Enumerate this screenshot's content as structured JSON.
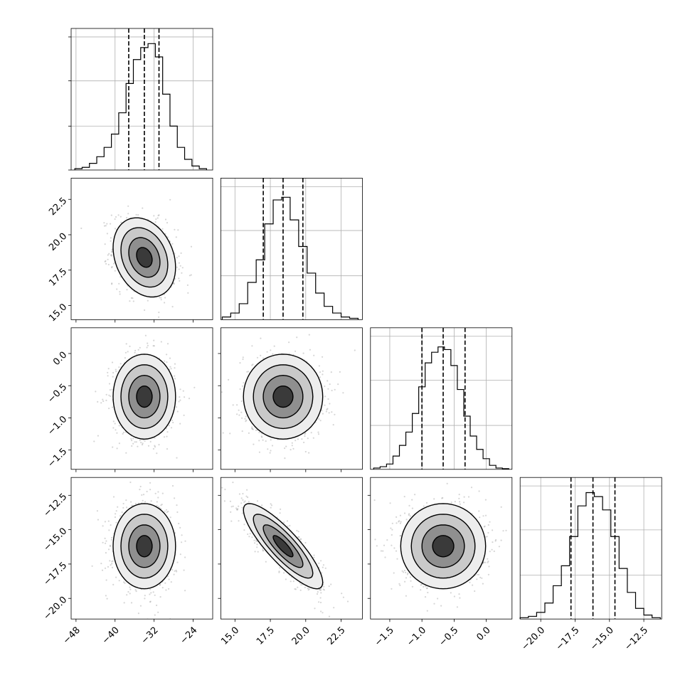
{
  "chart_data": {
    "type": "corner",
    "grid": true,
    "parameters": [
      {
        "range": [
          -49,
          -20
        ],
        "ticks": [
          -48,
          -40,
          -32,
          -24
        ],
        "tick_labels": [
          "−48",
          "−40",
          "−32",
          "−24"
        ],
        "quantiles": [
          -37.2,
          -34.0,
          -31.0
        ],
        "hist_x": [
          -47.5,
          -46.0,
          -44.5,
          -43.0,
          -41.5,
          -40.0,
          -38.5,
          -37.0,
          -35.5,
          -34.0,
          -32.5,
          -31.0,
          -29.5,
          -28.0,
          -26.5,
          -25.0,
          -23.5,
          -22.0
        ],
        "hist_counts": [
          0.01,
          0.02,
          0.05,
          0.1,
          0.17,
          0.27,
          0.43,
          0.65,
          0.83,
          0.92,
          0.95,
          0.85,
          0.57,
          0.33,
          0.17,
          0.08,
          0.03,
          0.01
        ],
        "mean": -34.0,
        "sd": 3.2
      },
      {
        "range": [
          14,
          24
        ],
        "ticks": [
          15.0,
          17.5,
          20.0,
          22.5
        ],
        "tick_labels": [
          "15.0",
          "17.5",
          "20.0",
          "22.5"
        ],
        "quantiles": [
          17.0,
          18.4,
          19.8
        ],
        "hist_x": [
          14.4,
          15.0,
          15.6,
          16.2,
          16.8,
          17.4,
          18.0,
          18.6,
          19.2,
          19.8,
          20.4,
          21.0,
          21.6,
          22.2,
          22.8,
          23.4
        ],
        "hist_counts": [
          0.02,
          0.05,
          0.12,
          0.28,
          0.45,
          0.72,
          0.9,
          0.92,
          0.75,
          0.55,
          0.35,
          0.2,
          0.1,
          0.05,
          0.02,
          0.01
        ],
        "mean": 18.4,
        "sd": 1.4
      },
      {
        "range": [
          -1.8,
          0.4
        ],
        "ticks": [
          -1.5,
          -1.0,
          -0.5,
          0.0
        ],
        "tick_labels": [
          "−1.5",
          "−1.0",
          "−0.5",
          "0.0"
        ],
        "quantiles": [
          -1.0,
          -0.67,
          -0.33
        ],
        "hist_x": [
          -1.7,
          -1.6,
          -1.5,
          -1.4,
          -1.3,
          -1.2,
          -1.1,
          -1.0,
          -0.9,
          -0.8,
          -0.7,
          -0.6,
          -0.5,
          -0.4,
          -0.3,
          -0.2,
          -0.1,
          0.0,
          0.1,
          0.2,
          0.3
        ],
        "hist_counts": [
          0.01,
          0.02,
          0.04,
          0.1,
          0.18,
          0.28,
          0.42,
          0.62,
          0.8,
          0.88,
          0.92,
          0.9,
          0.78,
          0.6,
          0.4,
          0.25,
          0.15,
          0.08,
          0.03,
          0.01,
          0.005
        ],
        "mean": -0.67,
        "sd": 0.33
      },
      {
        "range": [
          -21.5,
          -11.2
        ],
        "ticks": [
          -20.0,
          -17.5,
          -15.0,
          -12.5
        ],
        "tick_labels": [
          "−20.0",
          "−17.5",
          "−15.0",
          "−12.5"
        ],
        "quantiles": [
          -17.8,
          -16.2,
          -14.6
        ],
        "hist_x": [
          -21.2,
          -20.6,
          -20.0,
          -19.4,
          -18.8,
          -18.2,
          -17.6,
          -17.0,
          -16.4,
          -15.8,
          -15.2,
          -14.6,
          -14.0,
          -13.4,
          -12.8,
          -12.2,
          -11.6
        ],
        "hist_counts": [
          0.01,
          0.02,
          0.05,
          0.12,
          0.25,
          0.4,
          0.62,
          0.85,
          0.95,
          0.92,
          0.82,
          0.62,
          0.38,
          0.2,
          0.08,
          0.03,
          0.01
        ],
        "mean": -16.2,
        "sd": 1.55
      }
    ],
    "correlations": {
      "1,0": -0.25,
      "2,0": 0.0,
      "2,1": 0.0,
      "3,0": 0.0,
      "3,1": -0.85,
      "3,2": 0.0
    }
  }
}
